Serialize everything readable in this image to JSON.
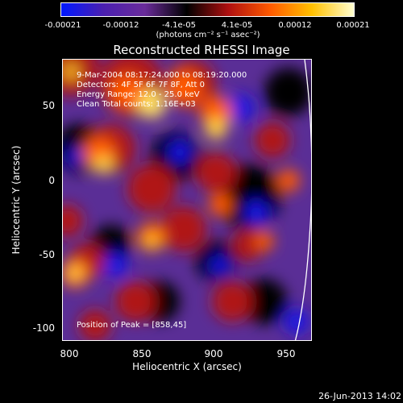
{
  "colorbar": {
    "ticks": [
      "-0.00021",
      "-0.00012",
      "-4.1e-05",
      "4.1e-05",
      "0.00012",
      "0.00021"
    ],
    "units": "(photons cm⁻² s⁻¹ asec⁻²)",
    "colors": [
      "#0018ff",
      "#4a1fb0",
      "#6a2c9a",
      "#000000",
      "#b01010",
      "#ff5a00",
      "#ffc000",
      "#ffffd0"
    ]
  },
  "title": "Reconstructed RHESSI Image",
  "info": {
    "time": "9-Mar-2004 08:17:24.000 to 08:19:20.000",
    "detectors": "Detectors: 4F 5F 6F 7F 8F, Att 0",
    "energy": "Energy Range: 12.0 - 25.0 keV",
    "clean": "Clean     Total counts: 1.16E+03",
    "peak": "Position of Peak = [858,45]"
  },
  "axes": {
    "xlabel": "Heliocentric X (arcsec)",
    "ylabel": "Heliocentric Y (arcsec)",
    "xticks": [
      "800",
      "850",
      "900",
      "950"
    ],
    "yticks": [
      "50",
      "0",
      "-50",
      "-100"
    ]
  },
  "footer": "26-Jun-2013 14:02"
}
